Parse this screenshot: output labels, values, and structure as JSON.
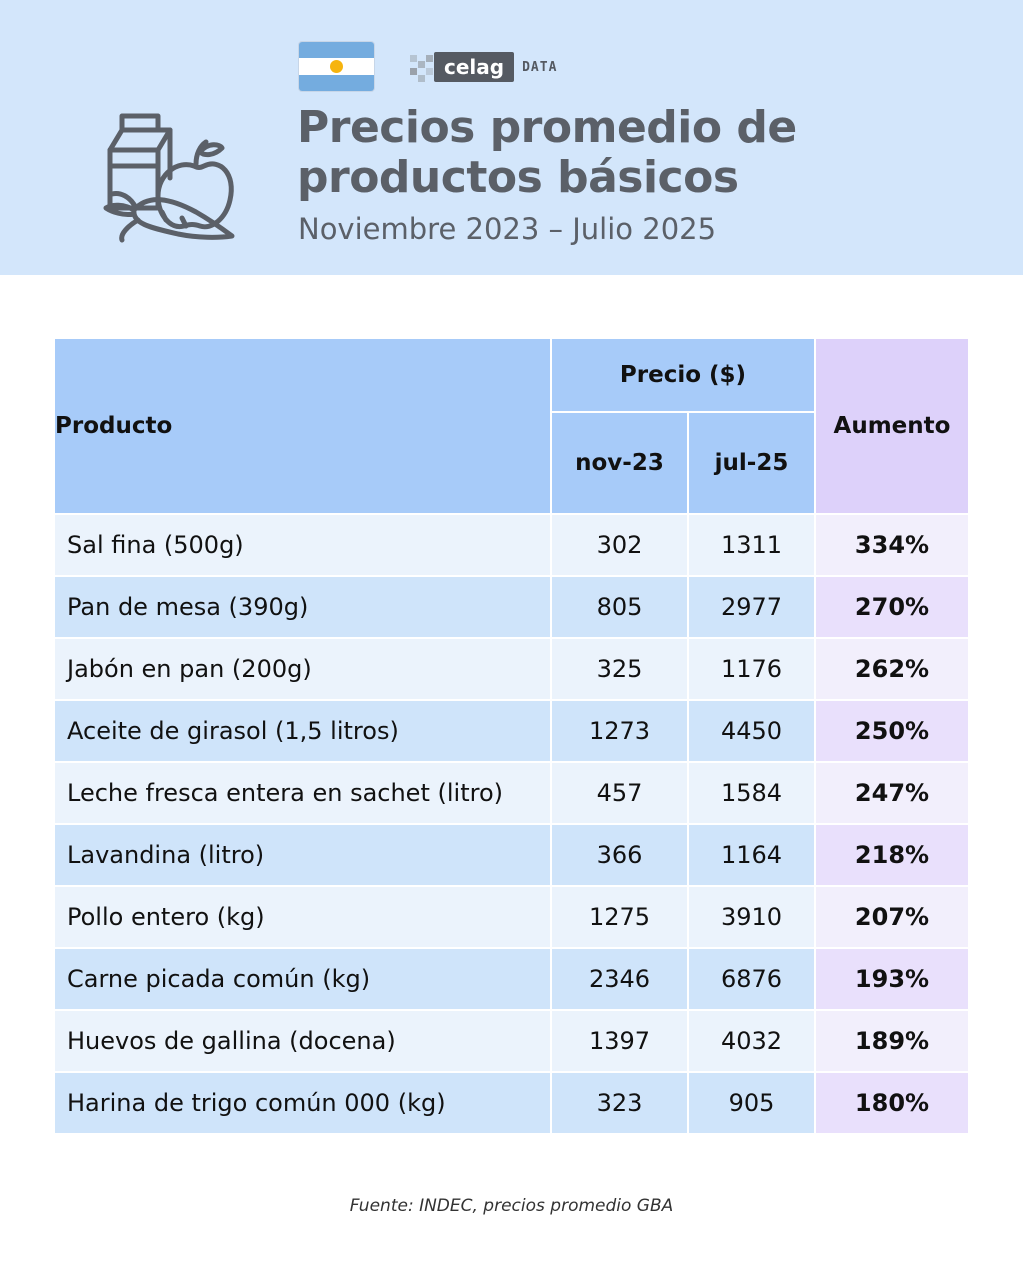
{
  "header": {
    "title_line1": "Precios promedio de",
    "title_line2": "productos básicos",
    "subtitle": "Noviembre 2023 – Julio 2025",
    "logo_text": "celag",
    "logo_suffix": "DATA"
  },
  "colors": {
    "header_bg": "#d3e6fb",
    "header_cells": "#a7cbf9",
    "aumento_header": "#ddd1fa",
    "title_text": "#5b6068"
  },
  "icons": [
    "argentina-flag-icon",
    "celag-logo",
    "groceries-icon"
  ],
  "table": {
    "col_producto": "Producto",
    "col_precio": "Precio  ($)",
    "col_nov": "nov-23",
    "col_jul": "jul-25",
    "col_aumento": "Aumento",
    "rows": [
      {
        "producto": "Sal fina (500g)",
        "nov": "302",
        "jul": "1311",
        "aumento": "334%"
      },
      {
        "producto": "Pan de mesa (390g)",
        "nov": "805",
        "jul": "2977",
        "aumento": "270%"
      },
      {
        "producto": "Jabón en pan (200g)",
        "nov": "325",
        "jul": "1176",
        "aumento": "262%"
      },
      {
        "producto": "Aceite de girasol (1,5 litros)",
        "nov": "1273",
        "jul": "4450",
        "aumento": "250%"
      },
      {
        "producto": "Leche fresca entera en sachet (litro)",
        "nov": "457",
        "jul": "1584",
        "aumento": "247%"
      },
      {
        "producto": "Lavandina (litro)",
        "nov": "366",
        "jul": "1164",
        "aumento": "218%"
      },
      {
        "producto": "Pollo entero (kg)",
        "nov": "1275",
        "jul": "3910",
        "aumento": "207%"
      },
      {
        "producto": "Carne picada común (kg)",
        "nov": "2346",
        "jul": "6876",
        "aumento": "193%"
      },
      {
        "producto": "Huevos de gallina (docena)",
        "nov": "1397",
        "jul": "4032",
        "aumento": "189%"
      },
      {
        "producto": "Harina de trigo común 000 (kg)",
        "nov": "323",
        "jul": "905",
        "aumento": "180%"
      }
    ]
  },
  "source": "Fuente: INDEC, precios promedio GBA"
}
